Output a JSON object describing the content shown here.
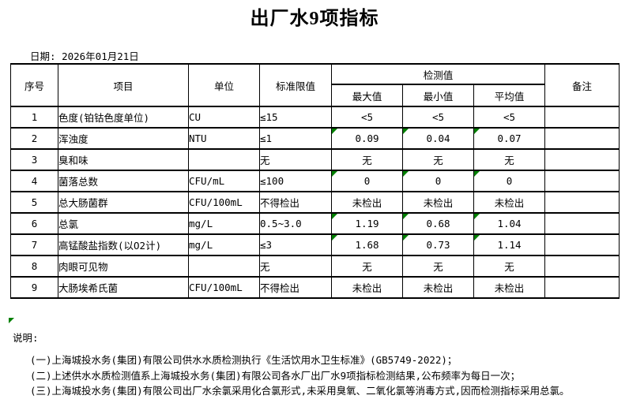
{
  "title": "出厂水9项指标",
  "date": {
    "label": "日期:",
    "value": "2026年01月21日"
  },
  "table": {
    "headers": {
      "seq": "序号",
      "item": "项目",
      "unit": "单位",
      "limit": "标准限值",
      "detection": "检测值",
      "max": "最大值",
      "min": "最小值",
      "avg": "平均值",
      "remark": "备注"
    },
    "rows": [
      {
        "seq": "1",
        "item": "色度(铂钴色度单位)",
        "unit": "CU",
        "limit": "≤15",
        "max": "<5",
        "min": "<5",
        "avg": "<5",
        "remark": "",
        "flagged": false
      },
      {
        "seq": "2",
        "item": "浑浊度",
        "unit": "NTU",
        "limit": "≤1",
        "max": "0.09",
        "min": "0.04",
        "avg": "0.07",
        "remark": "",
        "flagged": true
      },
      {
        "seq": "3",
        "item": "臭和味",
        "unit": "",
        "limit": "无",
        "max": "无",
        "min": "无",
        "avg": "无",
        "remark": "",
        "flagged": false
      },
      {
        "seq": "4",
        "item": "菌落总数",
        "unit": "CFU/mL",
        "limit": "≤100",
        "max": "0",
        "min": "0",
        "avg": "0",
        "remark": "",
        "flagged": true
      },
      {
        "seq": "5",
        "item": "总大肠菌群",
        "unit": "CFU/100mL",
        "limit": "不得检出",
        "max": "未检出",
        "min": "未检出",
        "avg": "未检出",
        "remark": "",
        "flagged": false
      },
      {
        "seq": "6",
        "item": "总氯",
        "unit": "mg/L",
        "limit": "0.5~3.0",
        "max": "1.19",
        "min": "0.68",
        "avg": "1.04",
        "remark": "",
        "flagged": true
      },
      {
        "seq": "7",
        "item": "高锰酸盐指数(以O2计)",
        "unit": "mg/L",
        "limit": "≤3",
        "max": "1.68",
        "min": "0.73",
        "avg": "1.14",
        "remark": "",
        "flagged": true
      },
      {
        "seq": "8",
        "item": "肉眼可见物",
        "unit": "",
        "limit": "无",
        "max": "无",
        "min": "无",
        "avg": "无",
        "remark": "",
        "flagged": false
      },
      {
        "seq": "9",
        "item": "大肠埃希氏菌",
        "unit": "CFU/100mL",
        "limit": "不得检出",
        "max": "未检出",
        "min": "未检出",
        "avg": "未检出",
        "remark": "",
        "flagged": false
      }
    ]
  },
  "notes": {
    "label": "说明:",
    "items": [
      "(一)上海城投水务(集团)有限公司供水水质检测执行《生活饮用水卫生标准》(GB5749-2022)；",
      "(二)上述供水水质检测值系上海城投水务(集团)有限公司各水厂出厂水9项指标检测结果,公布频率为每日一次；",
      "(三)上海城投水务(集团)有限公司出厂水余氯采用化合氯形式,未采用臭氧、二氧化氯等消毒方式,因而检测指标采用总氯。"
    ]
  },
  "colors": {
    "flag_green": "#008000",
    "border": "#000000"
  }
}
